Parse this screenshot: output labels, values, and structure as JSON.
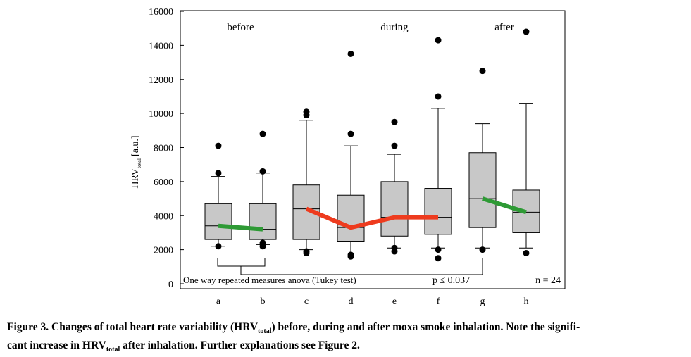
{
  "chart_data": {
    "type": "box",
    "categories": [
      "a",
      "b",
      "c",
      "d",
      "e",
      "f",
      "g",
      "h"
    ],
    "ylim": [
      0,
      16000
    ],
    "yticks": [
      0,
      2000,
      4000,
      6000,
      8000,
      10000,
      12000,
      14000,
      16000
    ],
    "ytick_labels": [
      "0",
      "2000",
      "4000",
      "6000",
      "8000",
      "10000",
      "12000",
      "14000",
      "16000"
    ],
    "ylabel_main": "HRV",
    "ylabel_sub": "total",
    "ylabel_unit": "[a.u.]",
    "grid": false,
    "boxes": [
      {
        "label": "a",
        "whisker_low": 2200,
        "q1": 2600,
        "median": 3400,
        "q3": 4700,
        "whisker_high": 6300,
        "outliers": [
          2200,
          6500,
          8100
        ]
      },
      {
        "label": "b",
        "whisker_low": 2300,
        "q1": 2600,
        "median": 3200,
        "q3": 4700,
        "whisker_high": 6500,
        "outliers": [
          2200,
          2400,
          6600,
          8800
        ]
      },
      {
        "label": "c",
        "whisker_low": 2000,
        "q1": 2600,
        "median": 4400,
        "q3": 5800,
        "whisker_high": 9600,
        "outliers": [
          1800,
          1900,
          9900,
          10100
        ]
      },
      {
        "label": "d",
        "whisker_low": 1800,
        "q1": 2500,
        "median": 3300,
        "q3": 5200,
        "whisker_high": 8100,
        "outliers": [
          1600,
          1700,
          8800,
          13500
        ]
      },
      {
        "label": "e",
        "whisker_low": 2100,
        "q1": 2800,
        "median": 3900,
        "q3": 6000,
        "whisker_high": 7600,
        "outliers": [
          1900,
          2100,
          8100,
          9500
        ]
      },
      {
        "label": "f",
        "whisker_low": 2100,
        "q1": 2900,
        "median": 3900,
        "q3": 5600,
        "whisker_high": 10300,
        "outliers": [
          1500,
          2000,
          11000,
          14300
        ]
      },
      {
        "label": "g",
        "whisker_low": 2100,
        "q1": 3300,
        "median": 5000,
        "q3": 7700,
        "whisker_high": 9400,
        "outliers": [
          2000,
          12500
        ]
      },
      {
        "label": "h",
        "whisker_low": 2100,
        "q1": 3000,
        "median": 4200,
        "q3": 5500,
        "whisker_high": 10600,
        "outliers": [
          1800,
          14800
        ]
      }
    ],
    "median_lines": [
      {
        "color": "#2e9a35",
        "from": "a",
        "to": "b",
        "values": [
          3400,
          3200
        ]
      },
      {
        "color": "#ee3b1e",
        "from": "c",
        "to": "f",
        "values": [
          4400,
          3300,
          3900,
          3900
        ]
      },
      {
        "color": "#2e9a35",
        "from": "g",
        "to": "h",
        "values": [
          5000,
          4200
        ]
      }
    ],
    "group_labels": [
      {
        "text": "before",
        "center": "ab"
      },
      {
        "text": "during",
        "center": "def"
      },
      {
        "text": "after",
        "center": "gh"
      }
    ],
    "annotation_test": "One way repeated measures anova (Tukey test)",
    "annotation_p": "p ≤ 0.037",
    "annotation_n": "n = 24",
    "colors": {
      "box_fill": "#c8c8c8",
      "green": "#2e9a35",
      "red": "#ee3b1e"
    }
  },
  "caption": {
    "part1": "Figure 3. Changes of total heart rate variability (HRV",
    "sub1": "total",
    "part2": ") before, during and after moxa smoke inhalation. Note the signifi-",
    "part3": "cant increase in HRV",
    "sub2": "total",
    "part4": " after inhalation. Further explanations see Figure 2."
  }
}
